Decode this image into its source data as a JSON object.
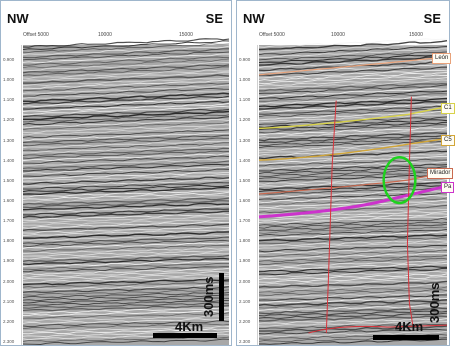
{
  "left_panel": {
    "nw_label": "NW",
    "se_label": "SE",
    "offset_labels": [
      "Offset 5000",
      "10000",
      "15000"
    ],
    "time_ticks": [
      "0.900",
      "1.000",
      "1.100",
      "1.200",
      "1.300",
      "1.400",
      "1.500",
      "1.600",
      "1.700",
      "1.800",
      "1.900",
      "2.000",
      "2.100",
      "2.200",
      "2.300"
    ],
    "scale_horizontal_label": "4Km",
    "scale_vertical_label": "300ms"
  },
  "right_panel": {
    "nw_label": "NW",
    "se_label": "SE",
    "offset_labels": [
      "Offset 5000",
      "10000",
      "15000"
    ],
    "time_ticks": [
      "0.900",
      "1.000",
      "1.100",
      "1.200",
      "1.300",
      "1.400",
      "1.500",
      "1.600",
      "1.700",
      "1.800",
      "1.900",
      "2.000",
      "2.100",
      "2.200",
      "2.300"
    ],
    "scale_horizontal_label": "4Km",
    "scale_vertical_label": "300ms",
    "horizons": [
      {
        "label": "León",
        "color": "#e8a27a"
      },
      {
        "label": "C1",
        "color": "#d8d24a"
      },
      {
        "label": "C5",
        "color": "#d2a638"
      },
      {
        "label": "Mirador",
        "color": "#c96a50"
      },
      {
        "label": "Pa",
        "color": "#cc33cc"
      }
    ],
    "fault_color": "#d8323a",
    "highlight_color": "#1ed21e"
  }
}
